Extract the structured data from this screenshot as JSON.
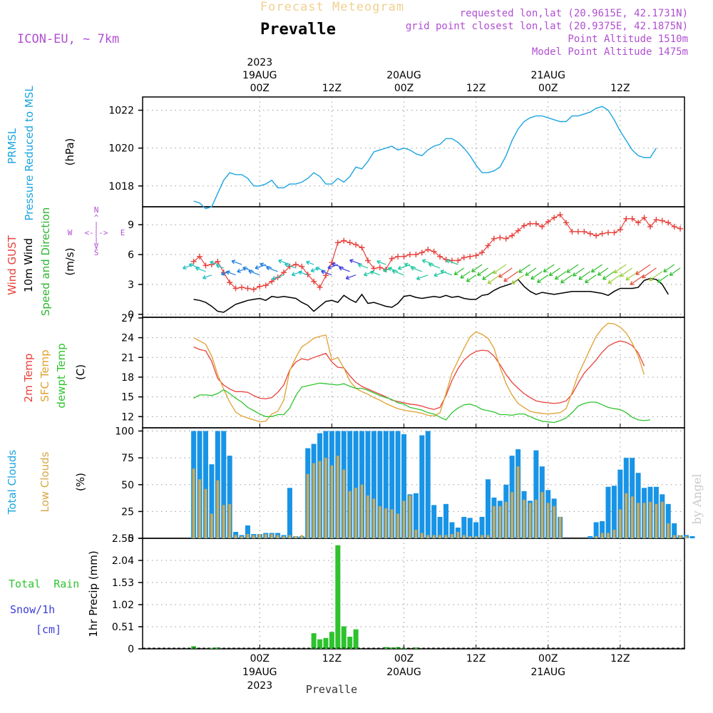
{
  "header": {
    "supertitle": "Forecast Meteogram",
    "title": "Prevalle",
    "model": "ICON-EU, ~ 7km",
    "requested": "requested lon,lat (20.9615E, 42.1731N)",
    "gridpoint": "grid point closest lon,lat (20.9375E, 42.1875N)",
    "point_alt": "Point Altitude 1510m",
    "model_alt": "Model Point Altitude 1475m",
    "footer_name": "Prevalle",
    "watermark": "by Angel"
  },
  "time_axis": {
    "top_labels": [
      {
        "line1": "2023",
        "line2": "19AUG",
        "line3": "00Z",
        "hour": 18
      },
      {
        "line1": "",
        "line2": "",
        "line3": "12Z",
        "hour": 30
      },
      {
        "line1": "",
        "line2": "20AUG",
        "line3": "00Z",
        "hour": 42
      },
      {
        "line1": "",
        "line2": "",
        "line3": "12Z",
        "hour": 54
      },
      {
        "line1": "",
        "line2": "21AUG",
        "line3": "00Z",
        "hour": 66
      },
      {
        "line1": "",
        "line2": "",
        "line3": "12Z",
        "hour": 78
      }
    ],
    "bottom_labels": [
      {
        "line1": "00Z",
        "line2": "19AUG",
        "line3": "2023",
        "hour": 18
      },
      {
        "line1": "12Z",
        "line2": "",
        "line3": "",
        "hour": 30
      },
      {
        "line1": "00Z",
        "line2": "20AUG",
        "line3": "",
        "hour": 42
      },
      {
        "line1": "12Z",
        "line2": "",
        "line3": "",
        "hour": 54
      },
      {
        "line1": "00Z",
        "line2": "21AUG",
        "line3": "",
        "hour": 66
      },
      {
        "line1": "12Z",
        "line2": "",
        "line3": "",
        "hour": 78
      }
    ]
  },
  "panels": {
    "pressure": {
      "lines": [
        "PRMSL",
        "Pressure Reduced to MSL"
      ],
      "unit": "(hPa)"
    },
    "wind": {
      "lines": [
        "Wind GUST",
        "10m Wind",
        "Speed and Direction"
      ],
      "unit": "(m/s)",
      "compass": {
        "n": "N",
        "s": "S",
        "w": "W",
        "e": "E",
        "h": "<-|->",
        "v1": "^",
        "v2": "|",
        "v3": "V"
      }
    },
    "temp": {
      "lines": [
        "2m Temp",
        "SFC Temp",
        "dewpt Temp"
      ],
      "unit": "(C)"
    },
    "clouds": {
      "lines": [
        "Total Clouds",
        "Low Clouds"
      ],
      "unit": "(%)"
    },
    "precip": {
      "lines": [
        "Total  Rain",
        "Snow/1h",
        "[cm]"
      ],
      "unit": "1hr Precip (mm)"
    }
  },
  "colors": {
    "pressure": "#1ca5e0",
    "gust": "#e8413c",
    "wind10m": "#000000",
    "winddir": "#2fb52f",
    "t2m": "#e8413c",
    "tsfc": "#e0a030",
    "dewpt": "#2fc42f",
    "total_cloud": "#1894e6",
    "low_cloud": "#d7a848",
    "rain": "#2ec22e",
    "snow": "#3c3cd8",
    "title_orange": "#f0d090",
    "purple": "#b050d0"
  },
  "chart_data": [
    {
      "type": "line",
      "title": "PRMSL Pressure Reduced to MSL",
      "ylabel": "(hPa)",
      "ylim": [
        1016.9,
        1022.7
      ],
      "yticks": [
        1018,
        1020,
        1022
      ],
      "x_start_hour": 7,
      "x_step_hours": 1,
      "series": [
        {
          "name": "PRMSL",
          "values": [
            1017.2,
            1017.1,
            1016.8,
            1016.9,
            1017.6,
            1018.3,
            1018.7,
            1018.6,
            1018.6,
            1018.4,
            1018.0,
            1018.0,
            1018.1,
            1018.3,
            1017.9,
            1017.9,
            1018.1,
            1018.1,
            1018.2,
            1018.4,
            1018.7,
            1018.5,
            1018.1,
            1018.1,
            1018.4,
            1018.2,
            1018.5,
            1019.0,
            1018.9,
            1019.3,
            1019.8,
            1019.9,
            1020.0,
            1020.1,
            1019.9,
            1020.0,
            1019.9,
            1019.7,
            1019.6,
            1019.9,
            1020.1,
            1020.2,
            1020.5,
            1020.5,
            1020.3,
            1020.0,
            1019.6,
            1019.1,
            1018.7,
            1018.7,
            1018.8,
            1019.0,
            1019.6,
            1020.4,
            1021.0,
            1021.4,
            1021.6,
            1021.7,
            1021.7,
            1021.6,
            1021.5,
            1021.4,
            1021.4,
            1021.7,
            1021.7,
            1021.8,
            1021.9,
            1022.1,
            1022.2,
            1022.0,
            1021.5,
            1020.9,
            1020.4,
            1019.9,
            1019.6,
            1019.5,
            1019.5,
            1020.0
          ]
        }
      ]
    },
    {
      "type": "line",
      "title": "Wind GUST / 10m Wind / Speed and Direction",
      "ylabel": "(m/s)",
      "ylim": [
        -0.3,
        10.8
      ],
      "yticks": [
        0,
        3,
        6,
        9
      ],
      "x_start_hour": 7,
      "x_step_hours": 1,
      "series": [
        {
          "name": "Wind GUST",
          "values": [
            5.3,
            5.8,
            4.9,
            5.0,
            5.3,
            4.2,
            3.2,
            2.6,
            2.7,
            2.6,
            2.5,
            2.8,
            2.9,
            3.3,
            3.7,
            4.2,
            4.8,
            5.0,
            4.8,
            4.0,
            3.3,
            2.7,
            3.9,
            5.2,
            7.2,
            7.4,
            7.2,
            7.0,
            6.7,
            5.4,
            4.6,
            4.7,
            4.5,
            5.6,
            5.8,
            5.8,
            6.0,
            6.0,
            6.2,
            6.5,
            6.3,
            5.8,
            5.5,
            5.4,
            5.4,
            5.7,
            5.8,
            5.9,
            6.2,
            6.9,
            7.6,
            7.7,
            7.6,
            7.9,
            8.4,
            8.9,
            9.1,
            9.1,
            8.8,
            9.3,
            9.7,
            10.0,
            9.2,
            8.3,
            8.3,
            8.3,
            8.1,
            7.9,
            8.1,
            8.2,
            8.2,
            8.5,
            9.6,
            9.6,
            9.2,
            9.7,
            8.8,
            9.5,
            9.4,
            9.2,
            8.8,
            8.6
          ]
        },
        {
          "name": "10m Wind",
          "values": [
            1.5,
            1.4,
            1.2,
            0.8,
            0.3,
            0.2,
            0.6,
            1.0,
            1.2,
            1.4,
            1.5,
            1.6,
            1.4,
            1.8,
            1.7,
            1.8,
            1.7,
            1.6,
            1.2,
            0.9,
            0.3,
            0.8,
            1.3,
            1.4,
            1.2,
            1.9,
            1.5,
            1.2,
            2.0,
            1.1,
            1.2,
            1.0,
            0.8,
            0.7,
            1.1,
            1.8,
            1.9,
            1.7,
            1.6,
            1.7,
            1.8,
            1.7,
            1.9,
            1.7,
            1.8,
            1.6,
            1.5,
            1.5,
            1.9,
            2.0,
            2.4,
            2.7,
            2.9,
            3.1,
            3.5,
            2.8,
            2.3,
            2.0,
            2.2,
            2.1,
            2.0,
            2.1,
            2.2,
            2.3,
            2.3,
            2.3,
            2.3,
            2.2,
            2.1,
            1.9,
            2.3,
            2.6,
            2.6,
            2.6,
            2.7,
            3.4,
            3.6,
            3.5,
            3.0,
            2.0
          ]
        }
      ]
    },
    {
      "type": "line",
      "title": "2m Temp / SFC Temp / dewpt Temp",
      "ylabel": "(C)",
      "ylim": [
        10.3,
        27.1
      ],
      "yticks": [
        12,
        15,
        18,
        21,
        24,
        27
      ],
      "x_start_hour": 7,
      "x_step_hours": 1,
      "series": [
        {
          "name": "2m Temp",
          "values": [
            22.6,
            22.2,
            22.0,
            20.4,
            17.8,
            16.8,
            16.2,
            15.8,
            15.8,
            15.7,
            15.2,
            14.8,
            14.7,
            14.9,
            15.7,
            16.8,
            19.1,
            20.3,
            20.8,
            20.6,
            21.0,
            21.3,
            21.6,
            20.3,
            19.5,
            19.4,
            18.2,
            17.2,
            16.6,
            16.2,
            15.8,
            15.4,
            15.0,
            14.5,
            14.3,
            14.1,
            13.9,
            13.8,
            13.6,
            13.3,
            13.1,
            13.4,
            15.2,
            17.5,
            19.3,
            20.6,
            21.4,
            21.9,
            22.1,
            22.0,
            21.2,
            19.9,
            18.4,
            17.2,
            16.3,
            15.5,
            14.9,
            14.4,
            14.2,
            14.1,
            14.0,
            14.1,
            14.4,
            15.4,
            17.1,
            18.6,
            19.6,
            20.6,
            21.8,
            22.7,
            23.2,
            23.5,
            23.3,
            22.8,
            21.7,
            19.7
          ]
        },
        {
          "name": "SFC Temp",
          "values": [
            24.0,
            23.5,
            23.0,
            21.2,
            18.4,
            16.2,
            14.2,
            12.7,
            12.1,
            11.8,
            11.5,
            11.2,
            11.3,
            12.4,
            12.8,
            14.5,
            19.0,
            21.0,
            22.6,
            23.2,
            23.9,
            24.2,
            24.4,
            20.6,
            21.0,
            19.4,
            17.4,
            16.3,
            15.8,
            15.4,
            14.9,
            14.5,
            14.0,
            13.6,
            13.2,
            13.0,
            12.8,
            12.7,
            12.5,
            12.2,
            12.1,
            12.6,
            15.5,
            18.6,
            20.5,
            22.4,
            24.1,
            24.9,
            24.5,
            23.9,
            22.4,
            19.5,
            17.0,
            15.3,
            14.0,
            13.4,
            12.8,
            12.6,
            12.5,
            12.4,
            12.5,
            12.6,
            13.2,
            15.7,
            18.4,
            20.3,
            22.3,
            24.2,
            25.4,
            26.2,
            26.1,
            25.6,
            24.7,
            23.2,
            21.2,
            18.4
          ]
        },
        {
          "name": "dewpt Temp",
          "values": [
            14.8,
            15.3,
            15.3,
            15.2,
            15.5,
            16.1,
            15.5,
            14.8,
            14.2,
            13.4,
            12.9,
            12.4,
            12.0,
            12.0,
            12.3,
            12.3,
            13.3,
            15.2,
            16.5,
            16.7,
            16.9,
            17.1,
            17.0,
            16.9,
            16.8,
            17.0,
            16.6,
            16.3,
            16.3,
            16.0,
            15.6,
            15.2,
            14.9,
            14.6,
            14.1,
            13.9,
            13.4,
            13.2,
            13.0,
            12.6,
            12.4,
            11.9,
            11.5,
            12.6,
            13.3,
            13.8,
            13.9,
            13.6,
            13.1,
            12.9,
            12.7,
            12.3,
            12.3,
            12.2,
            12.4,
            12.4,
            12.0,
            11.6,
            11.3,
            11.2,
            11.1,
            11.4,
            11.8,
            12.6,
            13.6,
            14.0,
            14.2,
            14.2,
            13.8,
            13.4,
            13.2,
            13.1,
            12.6,
            11.9,
            11.5,
            11.4,
            11.5
          ]
        }
      ]
    },
    {
      "type": "bar",
      "title": "Total Clouds / Low Clouds",
      "ylabel": "(%)",
      "ylim": [
        0,
        103
      ],
      "yticks": [
        0,
        25,
        50,
        75,
        100
      ],
      "x_start_hour": 7,
      "x_step_hours": 1,
      "series": [
        {
          "name": "Total Clouds",
          "values": [
            100,
            100,
            100,
            69,
            100,
            100,
            77,
            6,
            3,
            12,
            4,
            4,
            5,
            5,
            5,
            3,
            47,
            2,
            2,
            84,
            88,
            98,
            100,
            100,
            100,
            100,
            100,
            100,
            100,
            100,
            100,
            100,
            100,
            100,
            100,
            97,
            41,
            42,
            96,
            100,
            31,
            20,
            32,
            15,
            10,
            20,
            19,
            15,
            20,
            55,
            38,
            35,
            50,
            77,
            83,
            44,
            35,
            82,
            67,
            45,
            37,
            20,
            0,
            0,
            0,
            0,
            2,
            15,
            16,
            48,
            49,
            64,
            75,
            75,
            61,
            47,
            48,
            48,
            41,
            32,
            14,
            3,
            3,
            2
          ]
        },
        {
          "name": "Low Clouds",
          "values": [
            65,
            55,
            46,
            23,
            54,
            31,
            32,
            3,
            2,
            4,
            3,
            4,
            4,
            4,
            3,
            2,
            3,
            2,
            3,
            60,
            70,
            72,
            75,
            68,
            77,
            64,
            44,
            47,
            50,
            40,
            37,
            30,
            28,
            27,
            23,
            35,
            40,
            8,
            5,
            3,
            3,
            3,
            3,
            4,
            6,
            3,
            2,
            2,
            3,
            3,
            30,
            30,
            34,
            43,
            67,
            36,
            33,
            36,
            43,
            33,
            30,
            20,
            0,
            0,
            0,
            0,
            0,
            2,
            5,
            5,
            8,
            27,
            42,
            39,
            33,
            33,
            34,
            32,
            34,
            14,
            3,
            3,
            2
          ]
        }
      ]
    },
    {
      "type": "bar",
      "title": "Total Rain / Snow/1h [cm]",
      "ylabel": "1hr Precip (mm)",
      "ylim": [
        0,
        2.55
      ],
      "yticks": [
        0,
        0.51,
        1.02,
        1.53,
        2.04,
        2.55
      ],
      "x_start_hour": 7,
      "x_step_hours": 1,
      "series": [
        {
          "name": "Total Rain",
          "values": [
            0.06,
            0,
            0,
            0.02,
            0.03,
            0,
            0,
            0,
            0,
            0,
            0,
            0,
            0,
            0,
            0,
            0,
            0,
            0,
            0,
            0,
            0.36,
            0.22,
            0.25,
            0.39,
            2.39,
            0.52,
            0.28,
            0.45,
            0,
            0,
            0,
            0,
            0.04,
            0.03,
            0.04,
            0.02,
            0,
            0.03,
            0,
            0,
            0,
            0,
            0,
            0,
            0,
            0,
            0,
            0,
            0,
            0,
            0,
            0,
            0,
            0,
            0,
            0,
            0,
            0,
            0,
            0,
            0,
            0,
            0,
            0,
            0,
            0,
            0,
            0,
            0,
            0,
            0,
            0,
            0,
            0,
            0,
            0,
            0,
            0,
            0,
            0,
            0,
            0,
            0,
            0
          ]
        },
        {
          "name": "Snow/1h",
          "values": []
        }
      ]
    }
  ]
}
